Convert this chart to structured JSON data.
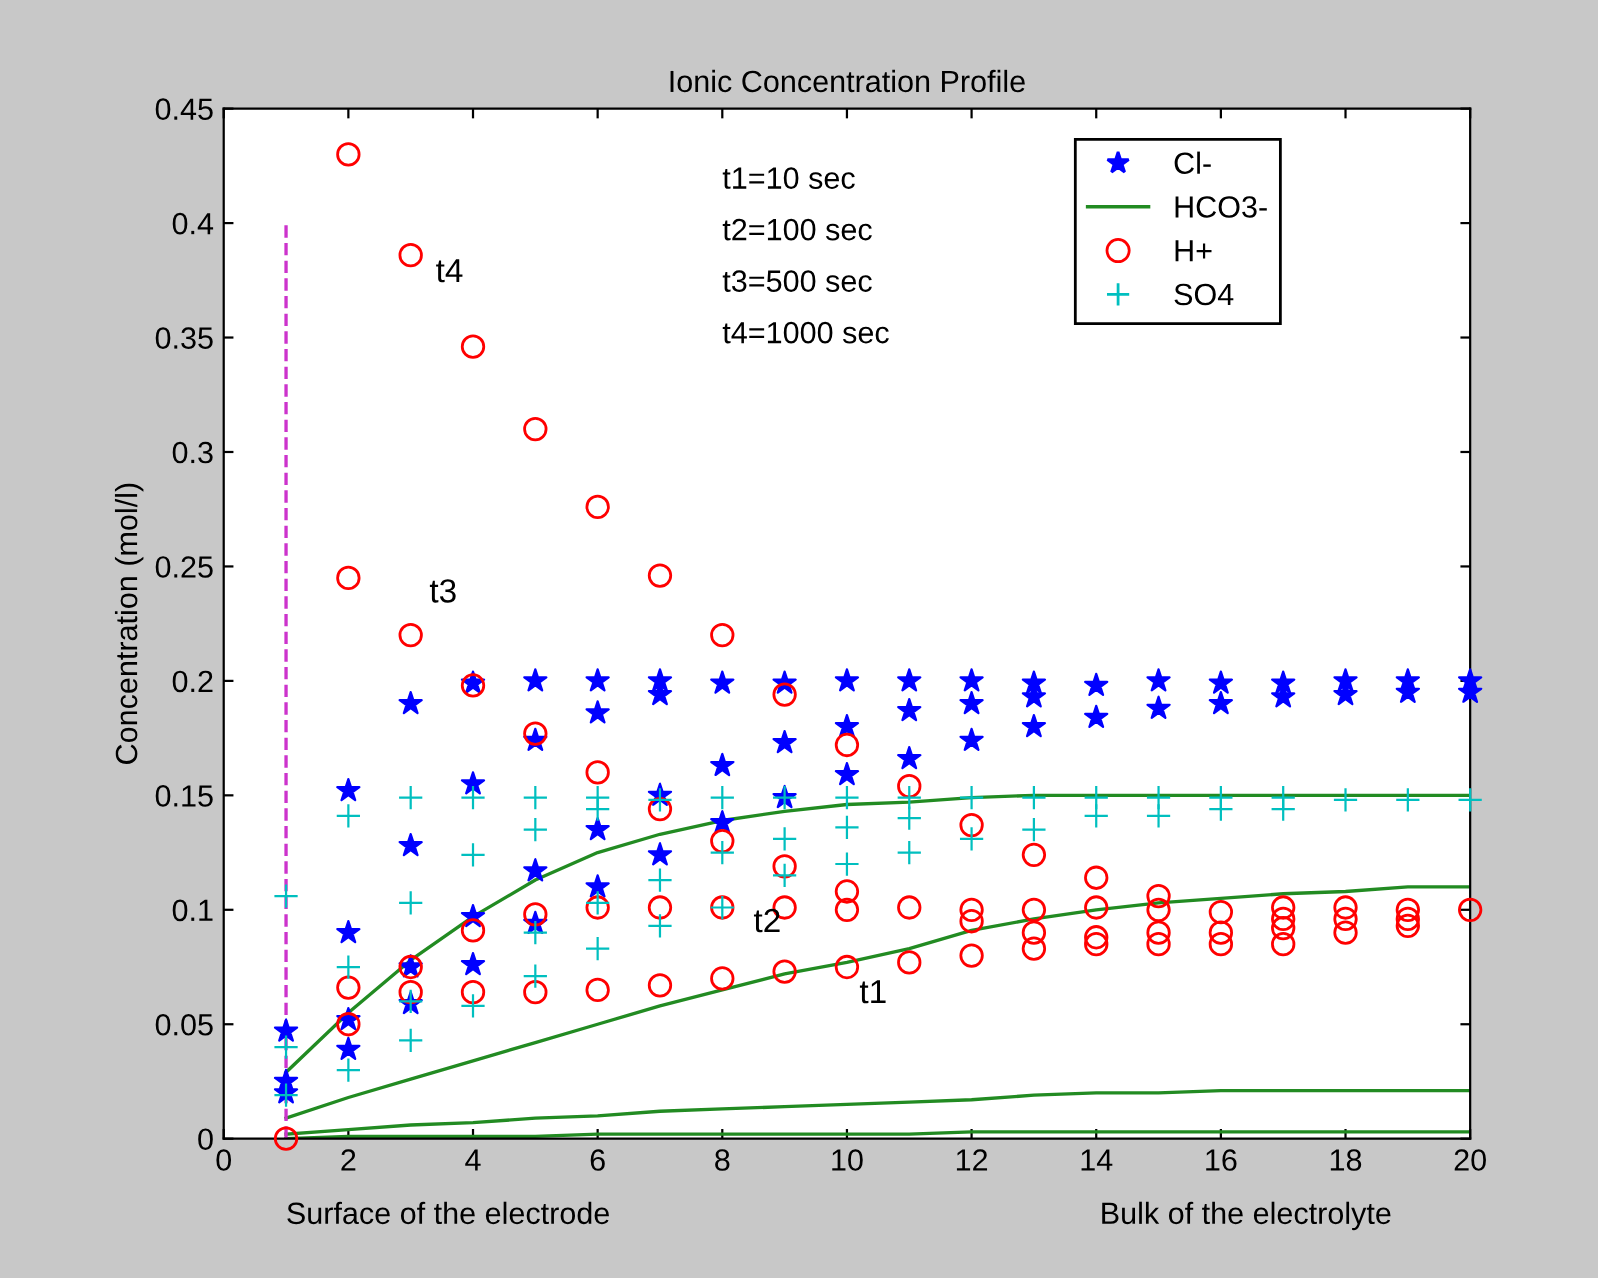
{
  "chart_data": {
    "type": "scatter",
    "title": "Ionic Concentration Profile",
    "ylabel": "Concentration (mol/l)",
    "xlim": [
      0,
      20
    ],
    "xticks": [
      0,
      2,
      4,
      6,
      8,
      10,
      12,
      14,
      16,
      18,
      20
    ],
    "ylim": [
      0,
      0.45
    ],
    "yticks": [
      0,
      0.05,
      0.1,
      0.15,
      0.2,
      0.25,
      0.3,
      0.35,
      0.4,
      0.45
    ],
    "grid": false,
    "legend": "top right",
    "series": [
      {
        "name": "Cl-",
        "marker": "star",
        "color": "#0000ff",
        "x": [
          1,
          1,
          1,
          2,
          2,
          2,
          2,
          3,
          3,
          3,
          3,
          4,
          4,
          4,
          4,
          5,
          5,
          5,
          5,
          6,
          6,
          6,
          6,
          7,
          7,
          7,
          7,
          8,
          8,
          8,
          9,
          9,
          9,
          10,
          10,
          10,
          11,
          11,
          11,
          12,
          12,
          12,
          13,
          13,
          13,
          14,
          14,
          15,
          15,
          16,
          16,
          17,
          17,
          18,
          18,
          19,
          19,
          20,
          20
        ],
        "values": [
          0.047,
          0.025,
          0.02,
          0.152,
          0.09,
          0.052,
          0.039,
          0.19,
          0.128,
          0.075,
          0.059,
          0.199,
          0.155,
          0.097,
          0.076,
          0.2,
          0.174,
          0.117,
          0.094,
          0.2,
          0.186,
          0.135,
          0.11,
          0.2,
          0.194,
          0.15,
          0.124,
          0.199,
          0.163,
          0.138,
          0.199,
          0.173,
          0.149,
          0.2,
          0.18,
          0.159,
          0.2,
          0.187,
          0.166,
          0.2,
          0.19,
          0.174,
          0.199,
          0.193,
          0.18,
          0.198,
          0.184,
          0.2,
          0.188,
          0.199,
          0.19,
          0.199,
          0.193,
          0.2,
          0.194,
          0.2,
          0.195,
          0.2,
          0.195
        ]
      },
      {
        "name": "HCO3-",
        "type": "line",
        "color": "#228b22",
        "x": [
          1,
          2,
          3,
          4,
          5,
          6,
          7,
          8,
          9,
          10,
          11,
          12,
          13,
          14,
          15,
          16,
          17,
          18,
          19,
          20
        ],
        "values": [
          0.029,
          0.055,
          0.078,
          0.097,
          0.113,
          0.125,
          0.133,
          0.139,
          0.143,
          0.146,
          0.147,
          0.149,
          0.15,
          0.15,
          0.15,
          0.15,
          0.15,
          0.15,
          0.15,
          0.15
        ]
      },
      {
        "type": "line",
        "color": "#228b22",
        "x": [
          1,
          2,
          3,
          4,
          5,
          6,
          7,
          8,
          9,
          10,
          11,
          12,
          13,
          14,
          15,
          16,
          17,
          18,
          19,
          20
        ],
        "values": [
          0.009,
          0.018,
          0.026,
          0.034,
          0.042,
          0.05,
          0.058,
          0.065,
          0.072,
          0.077,
          0.083,
          0.091,
          0.096,
          0.1,
          0.103,
          0.105,
          0.107,
          0.108,
          0.11,
          0.11
        ]
      },
      {
        "type": "line",
        "color": "#228b22",
        "x": [
          1,
          2,
          3,
          4,
          5,
          6,
          7,
          8,
          9,
          10,
          11,
          12,
          13,
          14,
          15,
          16,
          17,
          18,
          19,
          20
        ],
        "values": [
          0.002,
          0.004,
          0.006,
          0.007,
          0.009,
          0.01,
          0.012,
          0.013,
          0.014,
          0.015,
          0.016,
          0.017,
          0.019,
          0.02,
          0.02,
          0.021,
          0.021,
          0.021,
          0.021,
          0.021
        ]
      },
      {
        "type": "line",
        "color": "#228b22",
        "x": [
          1,
          2,
          3,
          4,
          5,
          6,
          7,
          8,
          9,
          10,
          11,
          12,
          13,
          14,
          15,
          16,
          17,
          18,
          19,
          20
        ],
        "values": [
          0.0,
          0.001,
          0.001,
          0.001,
          0.001,
          0.002,
          0.002,
          0.002,
          0.002,
          0.002,
          0.002,
          0.003,
          0.003,
          0.003,
          0.003,
          0.003,
          0.003,
          0.003,
          0.003,
          0.003
        ]
      },
      {
        "name": "H+",
        "marker": "circle",
        "color": "#ff0000",
        "x": [
          1,
          2,
          2,
          2,
          2,
          3,
          3,
          3,
          3,
          4,
          4,
          4,
          4,
          5,
          5,
          5,
          5,
          6,
          6,
          6,
          6,
          7,
          7,
          7,
          7,
          8,
          8,
          8,
          8,
          9,
          9,
          9,
          9,
          10,
          10,
          10,
          10,
          11,
          11,
          11,
          12,
          12,
          12,
          12,
          13,
          13,
          13,
          13,
          14,
          14,
          14,
          14,
          15,
          15,
          15,
          15,
          16,
          16,
          16,
          17,
          17,
          17,
          17,
          18,
          18,
          18,
          19,
          19,
          19,
          20
        ],
        "values": [
          0,
          0.43,
          0.245,
          0.066,
          0.05,
          0.386,
          0.22,
          0.075,
          0.064,
          0.346,
          0.198,
          0.091,
          0.064,
          0.31,
          0.177,
          0.098,
          0.064,
          0.276,
          0.16,
          0.101,
          0.065,
          0.246,
          0.144,
          0.101,
          0.067,
          0.22,
          0.13,
          0.101,
          0.07,
          0.194,
          0.119,
          0.101,
          0.073,
          0.172,
          0.108,
          0.1,
          0.075,
          0.154,
          0.101,
          0.077,
          0.137,
          0.1,
          0.095,
          0.08,
          0.124,
          0.1,
          0.09,
          0.083,
          0.114,
          0.101,
          0.088,
          0.085,
          0.106,
          0.1,
          0.09,
          0.085,
          0.099,
          0.09,
          0.085,
          0.101,
          0.096,
          0.092,
          0.085,
          0.101,
          0.096,
          0.09,
          0.1,
          0.096,
          0.093,
          0.1
        ]
      },
      {
        "name": "SO4",
        "marker": "cross",
        "color": "#00bfbf",
        "x": [
          1,
          1,
          1,
          2,
          2,
          2,
          3,
          3,
          3,
          3,
          4,
          4,
          4,
          5,
          5,
          5,
          5,
          6,
          6,
          6,
          6,
          7,
          7,
          7,
          8,
          8,
          8,
          9,
          9,
          9,
          10,
          10,
          10,
          11,
          11,
          11,
          12,
          12,
          13,
          13,
          14,
          14,
          15,
          15,
          16,
          16,
          17,
          17,
          18,
          19,
          20
        ],
        "values": [
          0.106,
          0.04,
          0.019,
          0.141,
          0.075,
          0.03,
          0.149,
          0.103,
          0.06,
          0.043,
          0.149,
          0.124,
          0.058,
          0.149,
          0.135,
          0.09,
          0.071,
          0.149,
          0.144,
          0.103,
          0.083,
          0.148,
          0.113,
          0.093,
          0.149,
          0.125,
          0.101,
          0.149,
          0.131,
          0.115,
          0.149,
          0.136,
          0.12,
          0.149,
          0.14,
          0.125,
          0.149,
          0.131,
          0.149,
          0.135,
          0.149,
          0.141,
          0.149,
          0.141,
          0.149,
          0.144,
          0.149,
          0.144,
          0.148,
          0.148,
          0.148
        ]
      }
    ],
    "ref_lines": [
      {
        "axis": "x",
        "value": 1,
        "color": "#cc33cc",
        "line_style": "dashed"
      }
    ],
    "annotations": [
      "t4",
      "t3",
      "t2",
      "t1",
      "t1=10 sec",
      "t2=100 sec",
      "t3=500 sec",
      "t4=1000 sec",
      "Surface of the electrode",
      "Bulk of the electrolyte"
    ]
  }
}
